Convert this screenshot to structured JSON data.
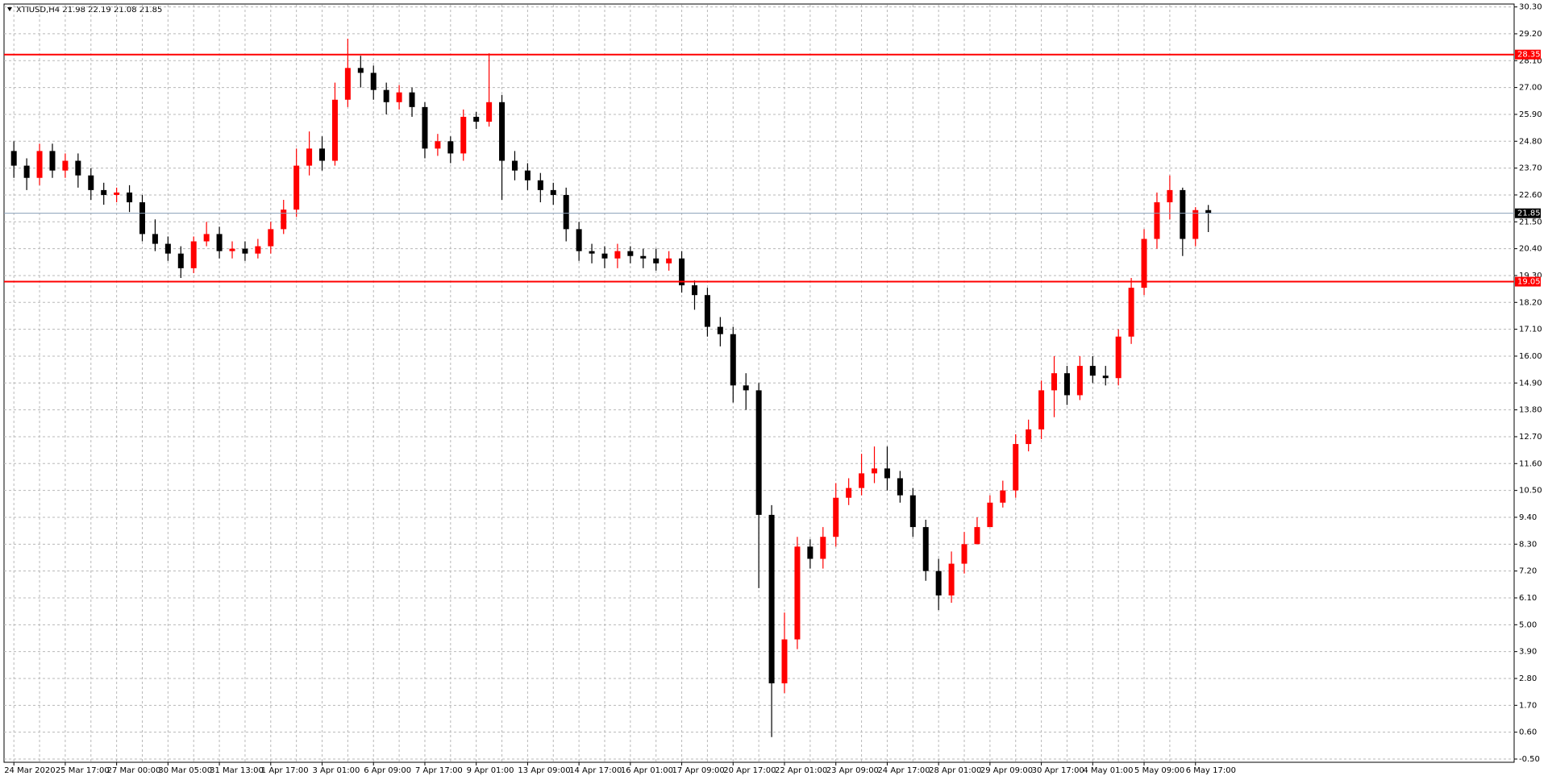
{
  "chart_data": {
    "type": "candlestick",
    "title": "XTIUSD,H4  21.98 22.19 21.08 21.85",
    "up_color": "#ff0000",
    "down_color": "#000000",
    "grid": true,
    "categories": [
      "24 Mar 2020",
      null,
      null,
      null,
      "25 Mar 17:00",
      null,
      null,
      null,
      "27 Mar 00:00",
      null,
      null,
      null,
      "30 Mar 05:00",
      null,
      null,
      null,
      "31 Mar 13:00",
      null,
      null,
      null,
      "1 Apr 17:00",
      null,
      null,
      null,
      "3 Apr 01:00",
      null,
      null,
      null,
      "6 Apr 09:00",
      null,
      null,
      null,
      "7 Apr 17:00",
      null,
      null,
      null,
      "9 Apr 01:00",
      null,
      null,
      null,
      "13 Apr 09:00",
      null,
      null,
      null,
      "14 Apr 17:00",
      null,
      null,
      null,
      "16 Apr 01:00",
      null,
      null,
      null,
      "17 Apr 09:00",
      null,
      null,
      null,
      "20 Apr 17:00",
      null,
      null,
      null,
      "22 Apr 01:00",
      null,
      null,
      null,
      "23 Apr 09:00",
      null,
      null,
      null,
      "24 Apr 17:00",
      null,
      null,
      null,
      "28 Apr 01:00",
      null,
      null,
      null,
      "29 Apr 09:00",
      null,
      null,
      null,
      "30 Apr 17:00",
      null,
      null,
      null,
      "4 May 01:00",
      null,
      null,
      null,
      "5 May 09:00",
      null,
      null,
      null,
      "6 May 17:00",
      null
    ],
    "open": [
      24.4,
      23.8,
      23.3,
      24.4,
      23.6,
      24.0,
      23.4,
      22.8,
      22.6,
      22.7,
      22.3,
      21.0,
      20.6,
      20.2,
      19.6,
      20.7,
      21.0,
      20.3,
      20.4,
      20.2,
      20.5,
      21.2,
      22.0,
      23.8,
      24.5,
      24.0,
      26.5,
      27.8,
      27.6,
      26.9,
      26.4,
      26.8,
      26.2,
      24.5,
      24.8,
      24.3,
      25.8,
      25.6,
      26.4,
      24.0,
      23.6,
      23.2,
      22.8,
      22.6,
      21.2,
      20.3,
      20.2,
      20.0,
      20.3,
      20.1,
      20.0,
      19.8,
      20.0,
      18.9,
      18.5,
      17.2,
      16.9,
      14.8,
      14.6,
      9.5,
      2.6,
      4.4,
      8.2,
      7.7,
      8.6,
      10.2,
      10.6,
      11.2,
      11.4,
      11.0,
      10.3,
      9.0,
      7.2,
      6.2,
      7.5,
      8.3,
      9.0,
      10.0,
      10.5,
      12.4,
      13.0,
      14.6,
      15.3,
      14.4,
      15.6,
      15.2,
      15.1,
      16.8,
      18.8,
      20.8,
      22.3,
      22.8,
      20.8,
      21.98
    ],
    "high": [
      24.8,
      24.1,
      24.7,
      24.7,
      24.3,
      24.3,
      23.7,
      23.1,
      22.9,
      23.0,
      22.6,
      21.6,
      20.9,
      20.5,
      20.9,
      21.5,
      21.3,
      20.7,
      20.7,
      20.8,
      21.5,
      22.4,
      24.5,
      25.2,
      25.0,
      27.2,
      29.0,
      28.3,
      27.9,
      27.2,
      27.1,
      27.0,
      26.4,
      25.1,
      25.0,
      26.1,
      26.0,
      28.4,
      26.7,
      24.4,
      23.9,
      23.5,
      23.1,
      22.9,
      21.5,
      20.6,
      20.5,
      20.6,
      20.5,
      20.4,
      20.4,
      20.3,
      20.3,
      19.1,
      18.8,
      17.6,
      17.2,
      15.3,
      14.9,
      9.9,
      5.5,
      8.6,
      8.5,
      9.0,
      10.8,
      11.0,
      12.0,
      12.3,
      12.3,
      11.3,
      10.6,
      9.3,
      7.7,
      8.0,
      8.8,
      9.4,
      10.3,
      10.9,
      12.8,
      13.4,
      15.0,
      16.0,
      15.6,
      16.0,
      16.0,
      15.6,
      17.1,
      19.2,
      21.2,
      22.7,
      23.4,
      22.9,
      22.1,
      22.19
    ],
    "low": [
      23.3,
      22.8,
      23.0,
      23.3,
      23.3,
      22.9,
      22.4,
      22.2,
      22.3,
      21.9,
      20.7,
      20.3,
      19.9,
      19.2,
      19.4,
      20.5,
      20.0,
      20.0,
      19.9,
      20.0,
      20.2,
      21.0,
      21.7,
      23.4,
      23.6,
      23.8,
      26.2,
      27.0,
      26.5,
      25.9,
      26.1,
      25.8,
      24.1,
      24.2,
      23.9,
      24.0,
      25.3,
      25.4,
      22.4,
      23.2,
      22.8,
      22.3,
      22.2,
      20.7,
      19.9,
      19.8,
      19.6,
      19.6,
      19.8,
      19.6,
      19.5,
      19.5,
      18.6,
      17.9,
      16.8,
      16.4,
      14.1,
      13.8,
      6.5,
      0.4,
      2.2,
      4.0,
      7.3,
      7.3,
      8.2,
      9.9,
      10.3,
      10.8,
      10.5,
      10.0,
      8.6,
      6.8,
      5.6,
      5.9,
      7.1,
      8.6,
      9.2,
      9.8,
      10.2,
      12.1,
      12.6,
      13.5,
      14.0,
      14.2,
      14.9,
      14.8,
      14.8,
      16.5,
      18.5,
      20.4,
      21.6,
      20.1,
      20.5,
      21.08
    ],
    "close": [
      23.8,
      23.3,
      24.4,
      23.6,
      24.0,
      23.4,
      22.8,
      22.6,
      22.7,
      22.3,
      21.0,
      20.6,
      20.2,
      19.6,
      20.7,
      21.0,
      20.3,
      20.4,
      20.2,
      20.5,
      21.2,
      22.0,
      23.8,
      24.5,
      24.0,
      26.5,
      27.8,
      27.6,
      26.9,
      26.4,
      26.8,
      26.2,
      24.5,
      24.8,
      24.3,
      25.8,
      25.6,
      26.4,
      24.0,
      23.6,
      23.2,
      22.8,
      22.6,
      21.2,
      20.3,
      20.2,
      20.0,
      20.3,
      20.1,
      20.0,
      19.8,
      20.0,
      18.9,
      18.5,
      17.2,
      16.9,
      14.8,
      14.6,
      9.5,
      2.6,
      4.4,
      8.2,
      7.7,
      8.6,
      10.2,
      10.6,
      11.2,
      11.4,
      11.0,
      10.3,
      9.0,
      7.2,
      6.2,
      7.5,
      8.3,
      9.0,
      10.0,
      10.5,
      12.4,
      13.0,
      14.6,
      15.3,
      14.4,
      15.6,
      15.2,
      15.1,
      16.8,
      18.8,
      20.8,
      22.3,
      22.8,
      20.8,
      21.98,
      21.85
    ],
    "ylim": [
      -0.5,
      30.3
    ],
    "yticks": [
      {
        "value": 30.3,
        "label": "30.30"
      },
      {
        "value": 29.2,
        "label": "29.20"
      },
      {
        "value": 28.1,
        "label": "28.10"
      },
      {
        "value": 27.0,
        "label": "27.00"
      },
      {
        "value": 25.9,
        "label": "25.90"
      },
      {
        "value": 24.8,
        "label": "24.80"
      },
      {
        "value": 23.7,
        "label": "23.70"
      },
      {
        "value": 22.6,
        "label": "22.60"
      },
      {
        "value": 21.5,
        "label": "21.50"
      },
      {
        "value": 20.4,
        "label": "20.40"
      },
      {
        "value": 19.3,
        "label": "19.30"
      },
      {
        "value": 18.2,
        "label": "18.20"
      },
      {
        "value": 17.1,
        "label": "17.10"
      },
      {
        "value": 16.0,
        "label": "16.00"
      },
      {
        "value": 14.9,
        "label": "14.90"
      },
      {
        "value": 13.8,
        "label": "13.80"
      },
      {
        "value": 12.7,
        "label": "12.70"
      },
      {
        "value": 11.6,
        "label": "11.60"
      },
      {
        "value": 10.5,
        "label": "10.50"
      },
      {
        "value": 9.4,
        "label": "9.40"
      },
      {
        "value": 8.3,
        "label": "8.30"
      },
      {
        "value": 7.2,
        "label": "7.20"
      },
      {
        "value": 6.1,
        "label": "6.10"
      },
      {
        "value": 5.0,
        "label": "5.00"
      },
      {
        "value": 3.9,
        "label": "3.90"
      },
      {
        "value": 2.8,
        "label": "2.80"
      },
      {
        "value": 1.7,
        "label": "1.70"
      },
      {
        "value": 0.6,
        "label": "0.60"
      },
      {
        "value": -0.5,
        "label": "-0.50"
      }
    ],
    "hlines": [
      {
        "value": 28.35,
        "color": "#ff0000"
      },
      {
        "value": 19.05,
        "color": "#ff0000"
      },
      {
        "value": 21.85,
        "color": "#8aa0b8"
      }
    ]
  }
}
